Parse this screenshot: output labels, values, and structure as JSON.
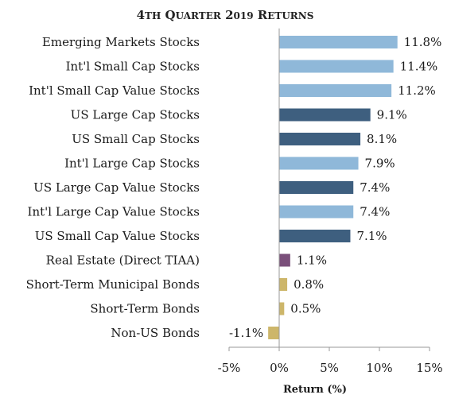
{
  "chart_data": {
    "type": "bar",
    "orientation": "horizontal",
    "title": "4th Quarter 2019 Returns",
    "xlabel": "Return (%)",
    "ylabel": "",
    "xlim": [
      -5,
      15
    ],
    "xticks": [
      -5,
      0,
      5,
      10,
      15
    ],
    "xtick_labels": [
      "-5%",
      "0%",
      "5%",
      "10%",
      "15%"
    ],
    "grid": false,
    "legend": "none",
    "categories": [
      "Emerging Markets Stocks",
      "Int'l Small Cap Stocks",
      "Int'l Small Cap Value Stocks",
      "US Large Cap Stocks",
      "US Small Cap Stocks",
      "Int'l Large Cap Stocks",
      "US Large Cap Value Stocks",
      "Int'l Large Cap Value Stocks",
      "US Small Cap Value Stocks",
      "Real Estate (Direct TIAA)",
      "Short-Term Municipal Bonds",
      "Short-Term Bonds",
      "Non-US Bonds"
    ],
    "values": [
      11.8,
      11.4,
      11.2,
      9.1,
      8.1,
      7.9,
      7.4,
      7.4,
      7.1,
      1.1,
      0.8,
      0.5,
      -1.1
    ],
    "value_labels": [
      "11.8%",
      "11.4%",
      "11.2%",
      "9.1%",
      "8.1%",
      "7.9%",
      "7.4%",
      "7.4%",
      "7.1%",
      "1.1%",
      "0.8%",
      "0.5%",
      "-1.1%"
    ],
    "bar_colors": [
      "#8fb8d9",
      "#8fb8d9",
      "#8fb8d9",
      "#3e5f7f",
      "#3e5f7f",
      "#8fb8d9",
      "#3e5f7f",
      "#8fb8d9",
      "#3e5f7f",
      "#7a4f7a",
      "#cdb66a",
      "#cdb66a",
      "#cdb66a"
    ],
    "axis_color": "#999999"
  }
}
